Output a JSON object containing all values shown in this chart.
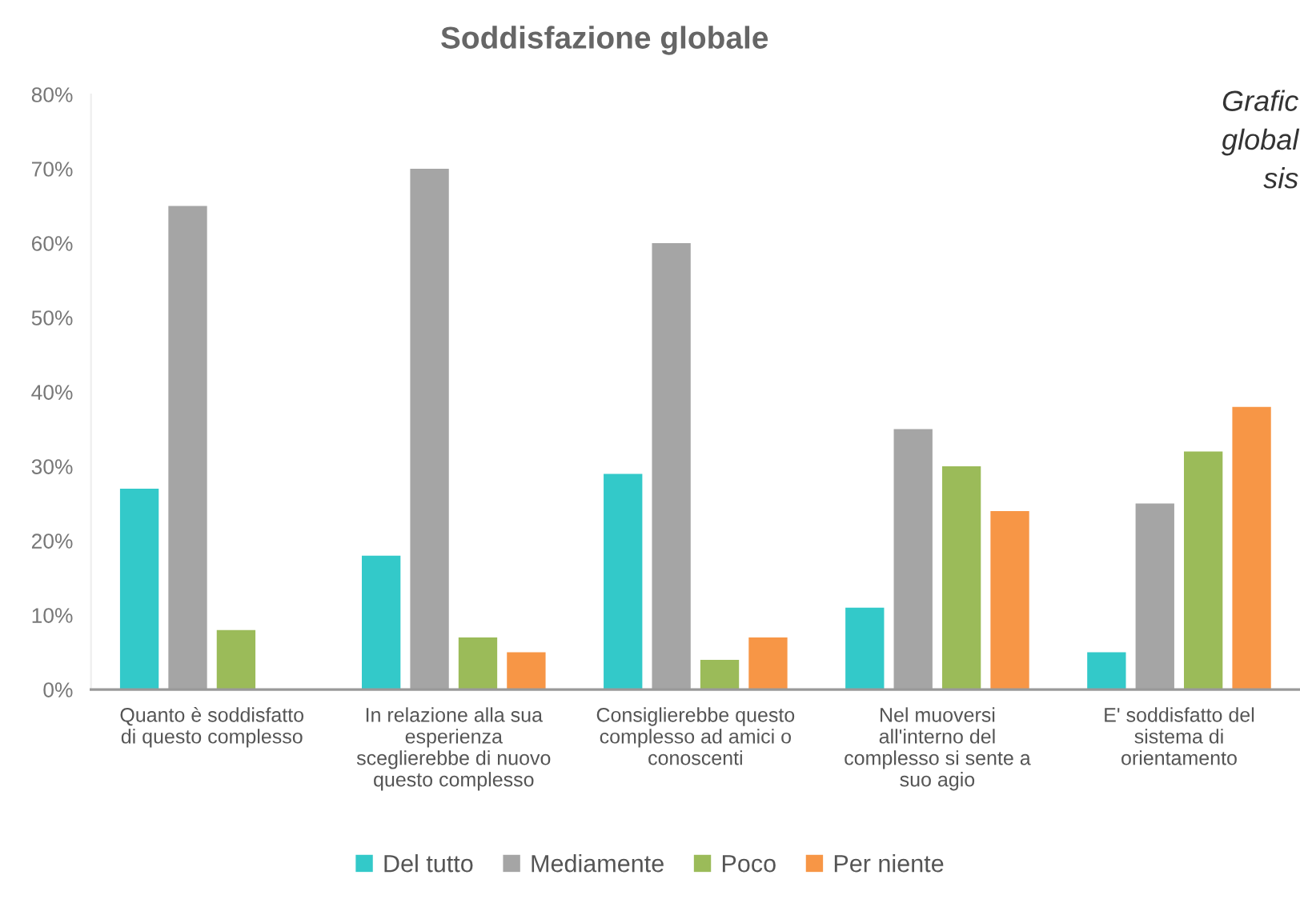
{
  "chart_data": {
    "type": "bar",
    "title": "Soddisfazione globale",
    "categories": [
      "Quanto è soddisfatto\ndi questo complesso",
      "In relazione alla sua\nesperienza\nsceglierebbe di nuovo\nquesto complesso",
      "Consiglierebbe questo\ncomplesso ad amici o\nconoscenti",
      "Nel muoversi\nall'interno del\ncomplesso si sente a\nsuo agio",
      "E' soddisfatto del\nsistema di\norientamento"
    ],
    "series": [
      {
        "name": "Del tutto",
        "color": "#33c9c9",
        "values": [
          27,
          18,
          29,
          11,
          5
        ]
      },
      {
        "name": "Mediamente",
        "color": "#a5a5a5",
        "values": [
          65,
          70,
          60,
          35,
          25
        ]
      },
      {
        "name": "Poco",
        "color": "#9bbb59",
        "values": [
          8,
          7,
          4,
          30,
          32
        ]
      },
      {
        "name": "Per niente",
        "color": "#f79646",
        "values": [
          null,
          5,
          7,
          24,
          38
        ]
      }
    ],
    "ylim": [
      0,
      80
    ],
    "yticks": [
      {
        "value": 0,
        "label": "0%"
      },
      {
        "value": 10,
        "label": "10%"
      },
      {
        "value": 20,
        "label": "20%"
      },
      {
        "value": 30,
        "label": "30%"
      },
      {
        "value": 40,
        "label": "40%"
      },
      {
        "value": 50,
        "label": "50%"
      },
      {
        "value": 60,
        "label": "60%"
      },
      {
        "value": 70,
        "label": "70%"
      },
      {
        "value": 80,
        "label": "80%"
      }
    ],
    "grid": false,
    "legend": "bottom",
    "annotations": [
      "Grafic",
      "global",
      "sis"
    ]
  }
}
